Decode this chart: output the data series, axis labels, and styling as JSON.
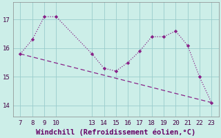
{
  "x": [
    7,
    8,
    9,
    10,
    13,
    14,
    15,
    16,
    17,
    18,
    19,
    20,
    21,
    22,
    23
  ],
  "y_main": [
    15.8,
    16.3,
    17.1,
    17.1,
    15.8,
    15.3,
    15.2,
    15.5,
    15.9,
    16.4,
    16.4,
    16.6,
    16.1,
    15.0,
    14.1
  ],
  "trend_x": [
    7,
    23
  ],
  "trend_y": [
    15.8,
    14.1
  ],
  "line_color": "#882288",
  "trend_color": "#882288",
  "bg_color": "#cceee8",
  "grid_color": "#99cccc",
  "xlabel": "Windchill (Refroidissement éolien,°C)",
  "xticks": [
    7,
    8,
    9,
    10,
    13,
    14,
    15,
    16,
    17,
    18,
    19,
    20,
    21,
    22,
    23
  ],
  "yticks": [
    14,
    15,
    16,
    17
  ],
  "ylim": [
    13.6,
    17.6
  ],
  "xlim": [
    6.4,
    23.6
  ],
  "xlabel_fontsize": 7.5,
  "tick_fontsize": 6.5
}
